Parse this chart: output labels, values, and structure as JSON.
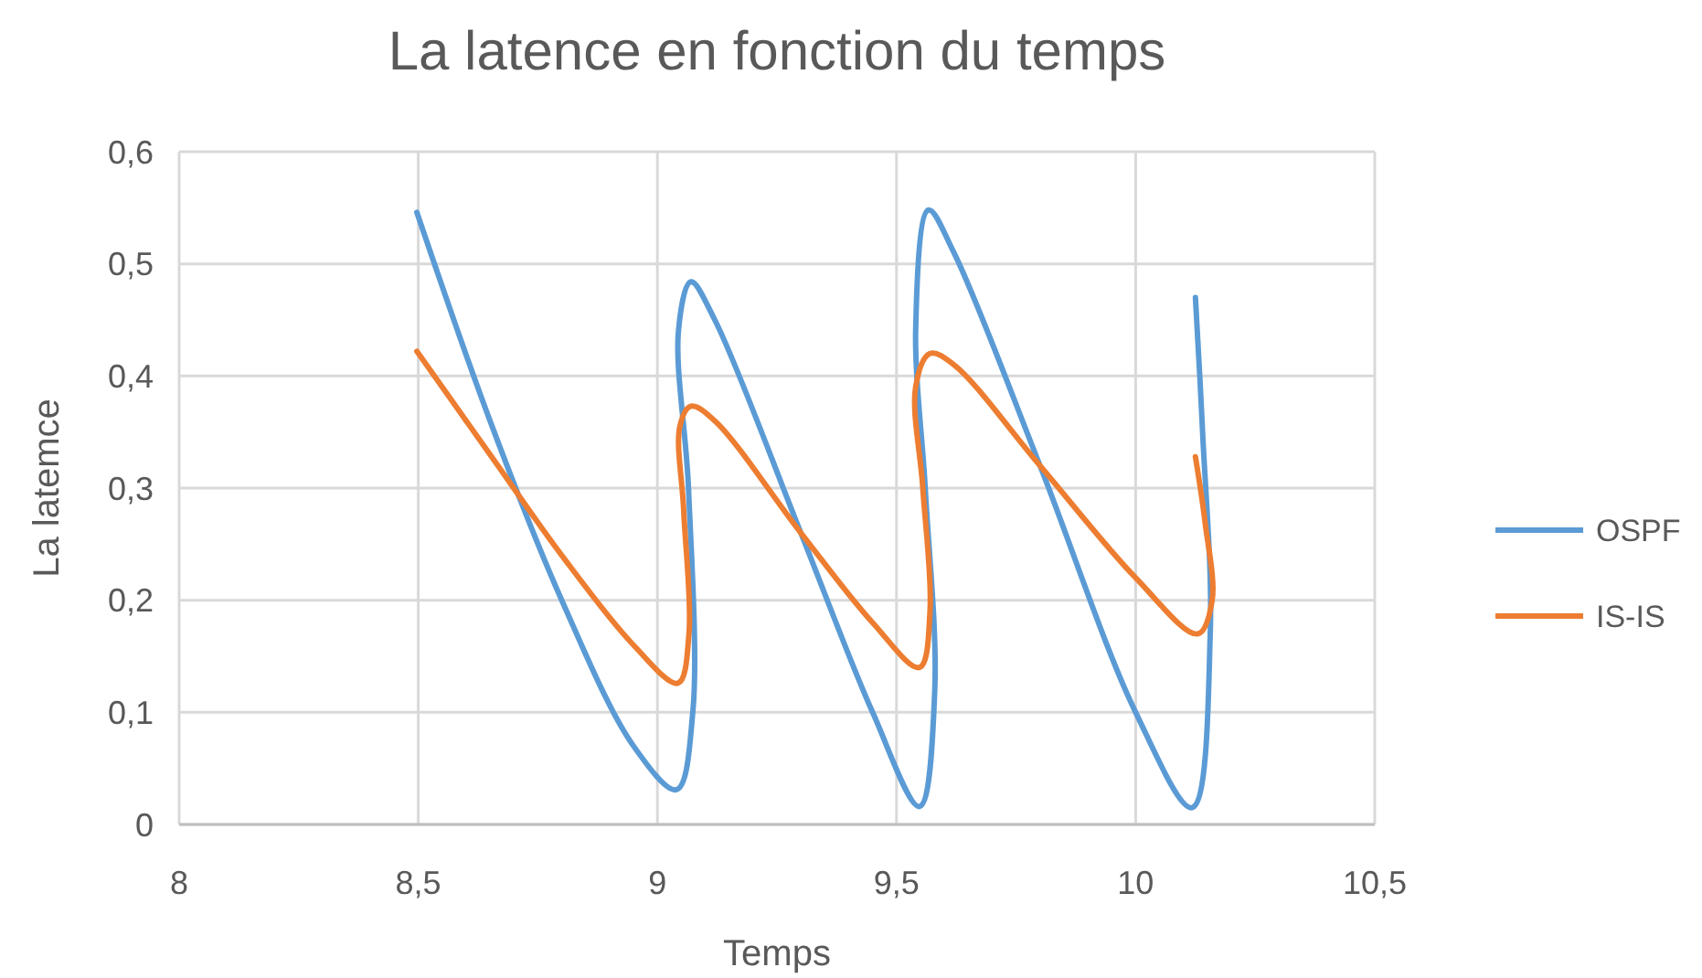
{
  "chart_data": {
    "type": "line",
    "title": "La latence en fonction du temps",
    "xlabel": "Temps",
    "ylabel": "La latemce",
    "xlim": [
      8,
      10.5
    ],
    "xticks": [
      8,
      {
        "value": 8.5,
        "label": "8,5"
      },
      9,
      {
        "value": 9.5,
        "label": "9,5"
      },
      10,
      {
        "value": 10.5,
        "label": "10,5"
      }
    ],
    "ylim": [
      0,
      0.6
    ],
    "yticks": [
      0,
      {
        "value": 0.1,
        "label": "0,1"
      },
      {
        "value": 0.2,
        "label": "0,2"
      },
      {
        "value": 0.3,
        "label": "0,3"
      },
      {
        "value": 0.4,
        "label": "0,4"
      },
      {
        "value": 0.5,
        "label": "0,5"
      },
      {
        "value": 0.6,
        "label": "0,6"
      }
    ],
    "grid": true,
    "legend": "right",
    "series": [
      {
        "name": "OSPF",
        "color": "#5b9bd5",
        "x": [
          8.497,
          8.65,
          8.8,
          8.95,
          9.04,
          9.074,
          9.065,
          9.044,
          9.07,
          9.12,
          9.3,
          9.45,
          9.548,
          9.58,
          9.56,
          9.54,
          9.567,
          9.62,
          9.8,
          10.0,
          10.118,
          10.156,
          10.14,
          10.125
        ],
        "values": [
          0.546,
          0.36,
          0.2,
          0.07,
          0.031,
          0.1,
          0.3,
          0.44,
          0.484,
          0.45,
          0.26,
          0.1,
          0.016,
          0.12,
          0.3,
          0.44,
          0.548,
          0.51,
          0.32,
          0.1,
          0.015,
          0.17,
          0.35,
          0.47
        ]
      },
      {
        "name": "IS-IS",
        "color": "#ed7d31",
        "x": [
          8.497,
          8.65,
          8.8,
          8.95,
          9.043,
          9.066,
          9.055,
          9.047,
          9.07,
          9.12,
          9.3,
          9.45,
          9.548,
          9.57,
          9.555,
          9.54,
          9.57,
          9.62,
          9.8,
          10.0,
          10.13,
          10.16,
          10.145,
          10.125
        ],
        "values": [
          0.422,
          0.33,
          0.24,
          0.16,
          0.126,
          0.17,
          0.28,
          0.355,
          0.373,
          0.36,
          0.26,
          0.18,
          0.14,
          0.19,
          0.3,
          0.39,
          0.42,
          0.41,
          0.32,
          0.22,
          0.17,
          0.2,
          0.27,
          0.328
        ]
      }
    ]
  }
}
